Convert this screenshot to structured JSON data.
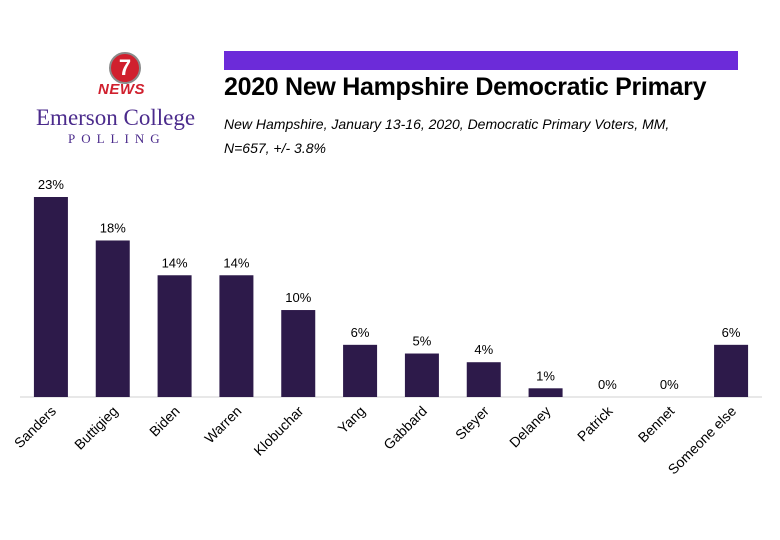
{
  "logo": {
    "seven": "7",
    "news": "NEWS",
    "college": "Emerson College",
    "polling": "POLLING"
  },
  "header": {
    "title": "2020 New Hampshire Democratic Primary",
    "subtitle_line1": "New Hampshire, January 13-16, 2020, Democratic Primary Voters, MM,",
    "subtitle_line2": "N=657,   +/-  3.8%"
  },
  "colors": {
    "bar": "#2d1a4a",
    "accent": "#6c2bd9",
    "brand": "#4b2b8c",
    "news_red": "#d0202e"
  },
  "chart_data": {
    "type": "bar",
    "title": "2020 New Hampshire Democratic Primary",
    "categories": [
      "Sanders",
      "Buttigieg",
      "Biden",
      "Warren",
      "Klobuchar",
      "Yang",
      "Gabbard",
      "Steyer",
      "Delaney",
      "Patrick",
      "Bennet",
      "Someone else"
    ],
    "values": [
      23,
      18,
      14,
      14,
      10,
      6,
      5,
      4,
      1,
      0,
      0,
      6
    ],
    "labels": [
      "23%",
      "18%",
      "14%",
      "14%",
      "10%",
      "6%",
      "5%",
      "4%",
      "1%",
      "0%",
      "0%",
      "6%"
    ],
    "unit": "%",
    "ylim": [
      0,
      23
    ],
    "grid": false,
    "legend": "none"
  }
}
